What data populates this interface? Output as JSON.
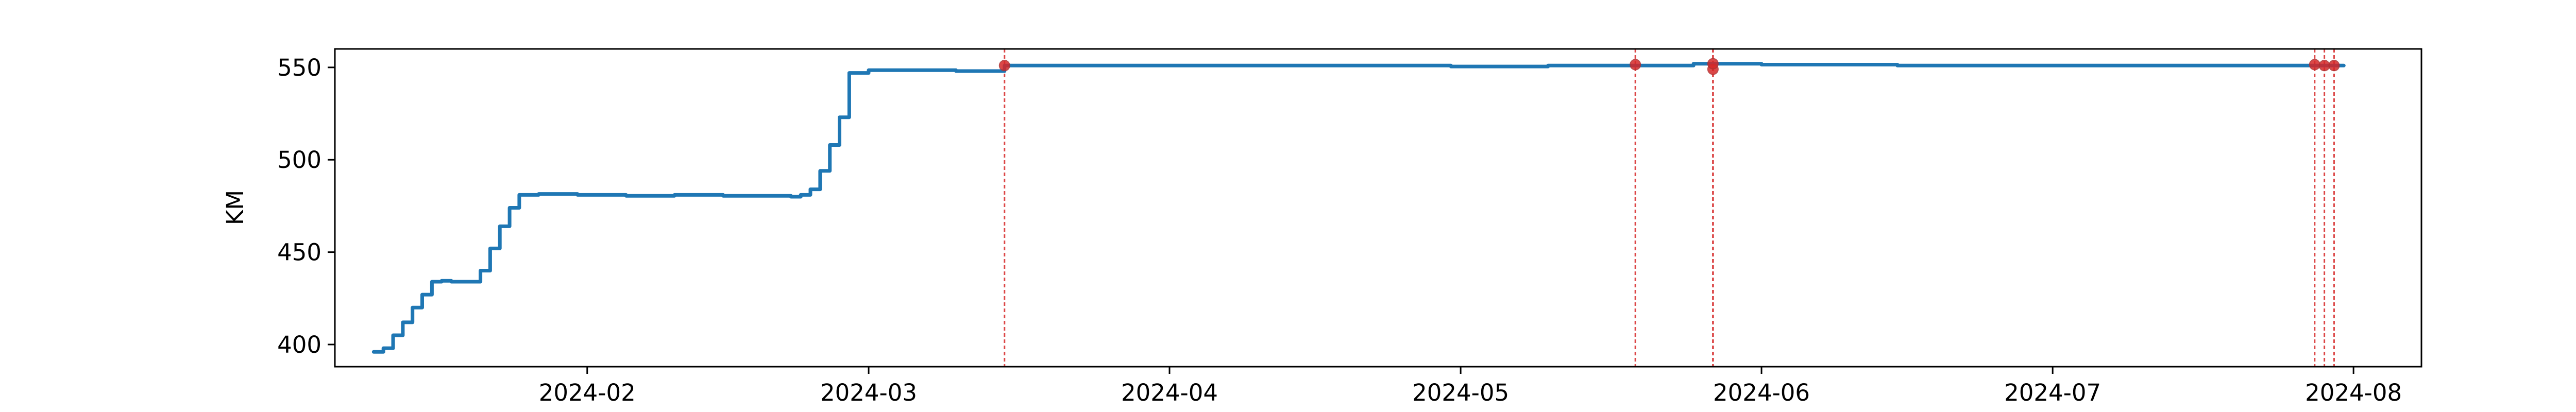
{
  "chart_data": {
    "type": "line",
    "title": "",
    "xlabel": "",
    "ylabel": "KM",
    "x_type": "date",
    "xlim": [
      "2024-01-06",
      "2024-08-08"
    ],
    "ylim": [
      388,
      560
    ],
    "grid": false,
    "x_ticks": [
      "2024-02-01",
      "2024-03-01",
      "2024-04-01",
      "2024-05-01",
      "2024-06-01",
      "2024-07-01",
      "2024-08-01"
    ],
    "x_tick_labels": [
      "2024-02",
      "2024-03",
      "2024-04",
      "2024-05",
      "2024-06",
      "2024-07",
      "2024-08"
    ],
    "y_ticks": [
      400,
      450,
      500,
      550
    ],
    "y_tick_labels": [
      "400",
      "450",
      "500",
      "550"
    ],
    "line_color": "#1f77b4",
    "marker_color": "#d62728",
    "series": [
      {
        "x": [
          "2024-01-10",
          "2024-01-11",
          "2024-01-12",
          "2024-01-13",
          "2024-01-14",
          "2024-01-15",
          "2024-01-16",
          "2024-01-17",
          "2024-01-18",
          "2024-01-19",
          "2024-01-20",
          "2024-01-21",
          "2024-01-22",
          "2024-01-23",
          "2024-01-24",
          "2024-01-25",
          "2024-01-27",
          "2024-01-31",
          "2024-02-05",
          "2024-02-10",
          "2024-02-15",
          "2024-02-20",
          "2024-02-22",
          "2024-02-23",
          "2024-02-24",
          "2024-02-25",
          "2024-02-26",
          "2024-02-27",
          "2024-02-28",
          "2024-03-01",
          "2024-03-05",
          "2024-03-10",
          "2024-03-15",
          "2024-03-20",
          "2024-03-31",
          "2024-04-15",
          "2024-04-30",
          "2024-05-10",
          "2024-05-20",
          "2024-05-25",
          "2024-06-01",
          "2024-06-15",
          "2024-07-01",
          "2024-07-15",
          "2024-07-29",
          "2024-07-31"
        ],
        "y": [
          396,
          398,
          405,
          412,
          420,
          427,
          434,
          434.5,
          434,
          434,
          434,
          440,
          452,
          464,
          474,
          481,
          481.5,
          481,
          480.5,
          481,
          480.5,
          480.5,
          480,
          481,
          484,
          494,
          508,
          523,
          547,
          548.5,
          548.5,
          548,
          551,
          551,
          551,
          551,
          550.5,
          551,
          551,
          552,
          551.5,
          551,
          551,
          551,
          551,
          551
        ]
      }
    ],
    "events": [
      {
        "x": "2024-03-15",
        "y": 551
      },
      {
        "x": "2024-05-19",
        "y": 551.5
      },
      {
        "x": "2024-05-27",
        "y": 549
      },
      {
        "x": "2024-05-27",
        "y": 552
      },
      {
        "x": "2024-07-28",
        "y": 551.5
      },
      {
        "x": "2024-07-29",
        "y": 551
      },
      {
        "x": "2024-07-30",
        "y": 551
      }
    ]
  }
}
